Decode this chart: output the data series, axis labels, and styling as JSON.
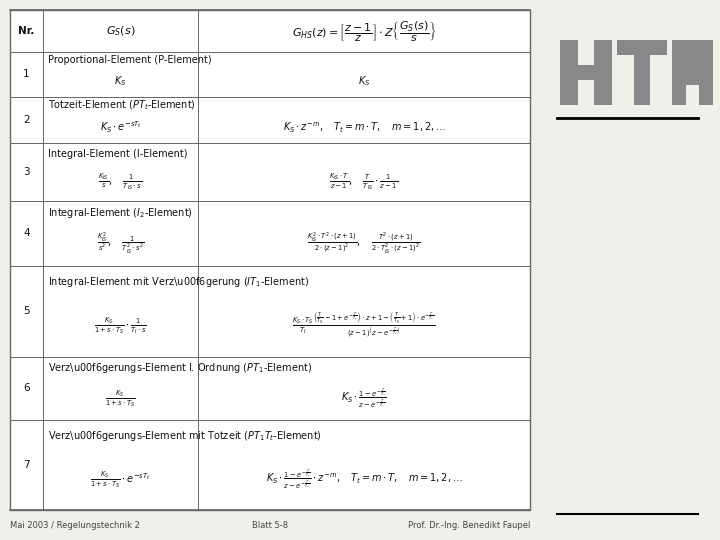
{
  "bg_color": "#f0f0eb",
  "table_bg": "#ffffff",
  "border_color": "#666666",
  "text_color": "#111111",
  "footer_left": "Mai 2003 / Regelungstechnik 2",
  "footer_center": "Blatt 5-8",
  "footer_right": "Prof. Dr.-Ing. Benedikt Faupel",
  "htw_color": "#888888",
  "rows": [
    {
      "nr": "Nr.",
      "gs": "$G_S(s)$",
      "ghs": "$G_{HS}(z) = \\left[\\dfrac{z-1}{z}\\right] \\cdot Z\\left\\{\\dfrac{G_S(s)}{s}\\right\\}$",
      "is_header": true
    },
    {
      "nr": "1",
      "title": "Proportional-Element (P-Element)",
      "gs": "$K_S$",
      "ghs": "$K_S$"
    },
    {
      "nr": "2",
      "title": "Totzeit-Element ($PT_t$-Element)",
      "gs": "$K_S \\cdot e^{-sT_t}$",
      "ghs": "$K_S \\cdot z^{-m}, \\quad T_t = m \\cdot T, \\quad m = 1, 2, \\ldots$"
    },
    {
      "nr": "3",
      "title": "Integral-Element (I-Element)",
      "gs": "$\\frac{K_{IS}}{s}, \\quad \\frac{1}{T_{IS} \\cdot s}$",
      "ghs": "$\\frac{K_{IS} \\cdot T}{z-1}, \\quad \\frac{T}{T_{IS}} \\cdot \\frac{1}{z-1}$"
    },
    {
      "nr": "4",
      "title": "Integral-Element ($I_2$-Element)",
      "gs": "$\\frac{K_{IS}^2}{s^2}, \\quad \\frac{1}{T_{IS}^2 \\cdot s^2}$",
      "ghs": "$\\frac{K_{IS}^2 \\cdot T^2 \\cdot (z+1)}{2 \\cdot (z-1)^2}, \\quad \\frac{T^2 \\cdot (z+1)}{2 \\cdot T_{IS}^2 \\cdot (z-1)^2}$"
    },
    {
      "nr": "5",
      "title": "Integral-Element mit Verz\\u00f6gerung ($IT_1$-Element)",
      "gs": "$\\frac{K_S}{1+s \\cdot T_S} \\cdot \\frac{1}{T_I \\cdot s}$",
      "ghs": "$\\frac{K_S \\cdot T_S}{T_I} \\frac{\\left(\\frac{T}{T_S}-1+e^{-\\frac{T}{T_S}}\\right) \\cdot z + 1 - \\left(\\frac{T}{T_S}+1\\right) \\cdot e^{-\\frac{T}{T_S}}}{(z-1)\\left(z-e^{-\\frac{T}{T_S}}\\right)}$"
    },
    {
      "nr": "6",
      "title": "Verz\\u00f6gerungs-Element I. Ordnung ($PT_1$-Element)",
      "gs": "$\\frac{K_S}{1+s \\cdot T_S}$",
      "ghs": "$K_S \\cdot \\frac{1-e^{-\\frac{T}{T_S}}}{z-e^{-\\frac{T}{T_S}}}$"
    },
    {
      "nr": "7",
      "title": "Verz\\u00f6gerungs-Element mit Totzeit ($PT_1T_t$-Element)",
      "gs": "$\\frac{K_S}{1+s \\cdot T_S} \\cdot e^{-sT_t}$",
      "ghs": "$K_S \\cdot \\frac{1-e^{-\\frac{T}{T_S}}}{z-e^{-\\frac{T}{T_S}}} \\cdot z^{-m}, \\quad T_t = m \\cdot T, \\quad m = 1, 2, \\ldots$"
    }
  ]
}
